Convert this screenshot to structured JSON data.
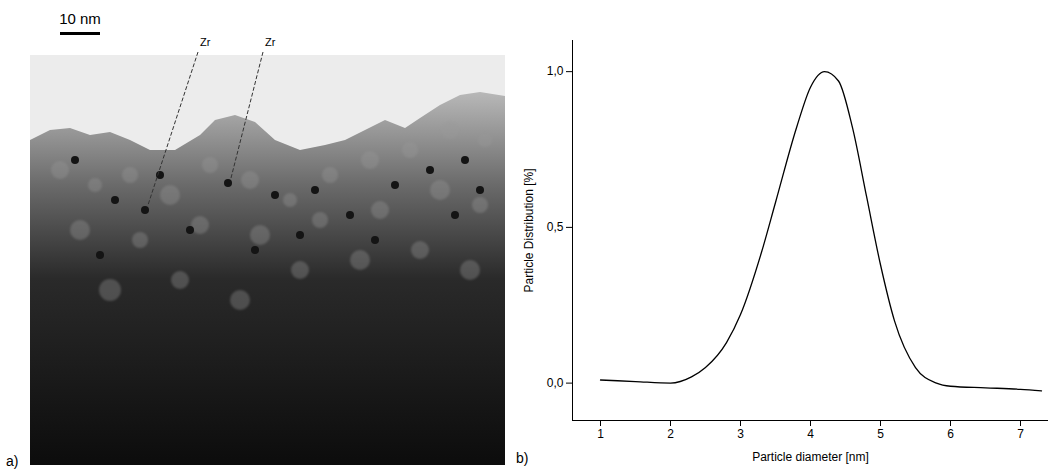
{
  "image_panel": {
    "panel_label": "a)",
    "scale_bar": "10 nm",
    "annotations": [
      "Zr",
      "Zr"
    ]
  },
  "chart_data": {
    "type": "line",
    "panel_label": "b)",
    "x_label": "Particle diameter [nm]",
    "y_label": "Particle Distribution [%]",
    "x": [
      1,
      1.5,
      2,
      2.3,
      2.5,
      2.8,
      3,
      3.3,
      3.5,
      3.8,
      4,
      4.2,
      4.4,
      4.6,
      4.8,
      5,
      5.2,
      5.5,
      5.8,
      6,
      6.5,
      7,
      7.3
    ],
    "values": [
      0.01,
      0.005,
      0.0,
      0.02,
      0.05,
      0.13,
      0.22,
      0.42,
      0.58,
      0.82,
      0.95,
      1.0,
      0.97,
      0.82,
      0.6,
      0.38,
      0.2,
      0.05,
      0.0,
      -0.01,
      -0.015,
      -0.02,
      -0.025
    ],
    "color": "#000000",
    "xlim": [
      0.6,
      7.4
    ],
    "xticks": [
      1,
      2,
      3,
      4,
      5,
      6,
      7
    ],
    "ylim": [
      -0.12,
      1.1
    ],
    "yticks": [
      {
        "value": 0,
        "label": "0,0"
      },
      {
        "value": 0.5,
        "label": "0,5"
      },
      {
        "value": 1,
        "label": "1,0"
      }
    ],
    "grid": false
  }
}
